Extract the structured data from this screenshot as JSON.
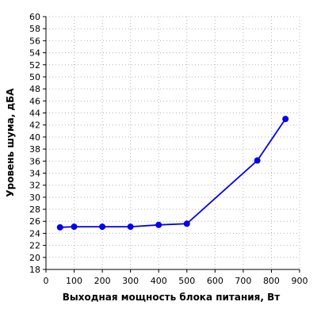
{
  "chart_data": {
    "type": "line",
    "xlabel": "Выходная мощность блока питания, Вт",
    "ylabel": "Уровень шума, дБА",
    "xlim": [
      0,
      900
    ],
    "ylim": [
      18,
      60
    ],
    "x_ticks": [
      0,
      100,
      200,
      300,
      400,
      500,
      600,
      700,
      800,
      900
    ],
    "y_ticks": [
      18,
      20,
      22,
      24,
      26,
      28,
      30,
      32,
      34,
      36,
      38,
      40,
      42,
      44,
      46,
      48,
      50,
      52,
      54,
      56,
      58,
      60
    ],
    "grid": true,
    "series": [
      {
        "x": [
          50,
          100,
          200,
          300,
          400,
          500,
          750,
          850
        ],
        "y": [
          25.0,
          25.1,
          25.1,
          25.1,
          25.4,
          25.6,
          36.1,
          43.0
        ],
        "color": "#0000ee"
      }
    ]
  }
}
